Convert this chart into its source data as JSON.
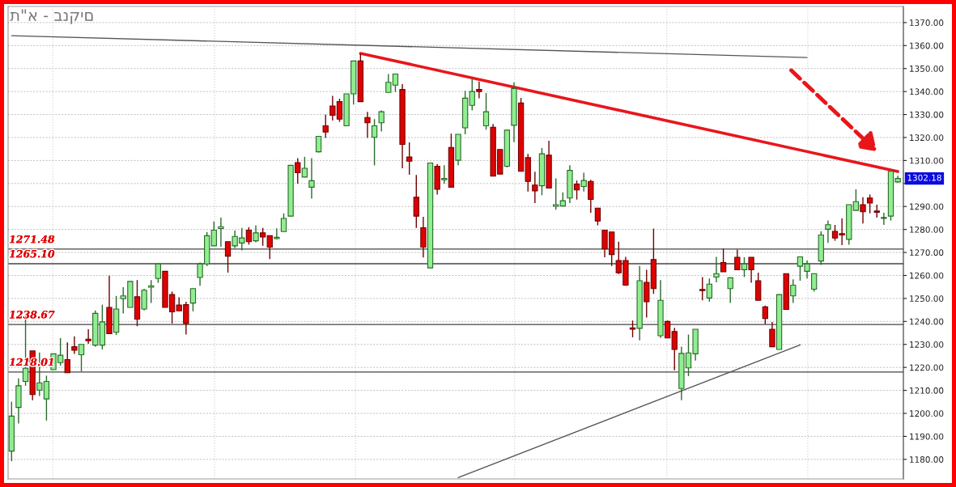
{
  "chart_data": {
    "type": "candlestick",
    "title": "ת\"א - בנקים",
    "categories": [
      null,
      null,
      null,
      null,
      null,
      null,
      null,
      null,
      null,
      null,
      null,
      null,
      null,
      null,
      null,
      null,
      null,
      null,
      null,
      null,
      null,
      null,
      null,
      null,
      null,
      null,
      null,
      null,
      null,
      null,
      null,
      null,
      null,
      null,
      null,
      null,
      null,
      null,
      null,
      null,
      null,
      null,
      null,
      null,
      null,
      null,
      null,
      null,
      null,
      null,
      null,
      null,
      null,
      null,
      null,
      null,
      null,
      null,
      null,
      null,
      null,
      null,
      null,
      null,
      null,
      null,
      null,
      null,
      null,
      null,
      null,
      null,
      null,
      null,
      null,
      null,
      null,
      null,
      null,
      null,
      null,
      null,
      null,
      null,
      null,
      null,
      null,
      null,
      null,
      null,
      null,
      null,
      null,
      null,
      null,
      null,
      null,
      null,
      null,
      null,
      null,
      null,
      null,
      null,
      null,
      null,
      null,
      null,
      null,
      null,
      null,
      null,
      null,
      null,
      null,
      null,
      null,
      null,
      null,
      null,
      null,
      null,
      null,
      null,
      null,
      null,
      null,
      null
    ],
    "ohlc": [
      [
        1183.6,
        1205.1,
        1179.2,
        1198.8
      ],
      [
        1202.6,
        1215.2,
        1195.6,
        1212.0
      ],
      [
        1213.9,
        1242.9,
        1212.0,
        1219.6
      ],
      [
        1227.2,
        1227.2,
        1205.7,
        1208.2
      ],
      [
        1210.1,
        1226.5,
        1207.6,
        1213.3
      ],
      [
        1206.3,
        1216.4,
        1196.9,
        1213.9
      ],
      [
        1219.0,
        1225.9,
        1219.0,
        1225.9
      ],
      [
        1222.1,
        1232.8,
        1220.8,
        1225.3
      ],
      [
        1223.4,
        1230.9,
        1217.7,
        1217.7
      ],
      [
        1229.0,
        1233.5,
        1225.9,
        1227.5
      ],
      [
        1225.5,
        1230.0,
        1218.3,
        1230.0
      ],
      [
        1232.3,
        1236.6,
        1230.3,
        1231.6
      ],
      [
        1229.7,
        1244.8,
        1229.0,
        1243.5
      ],
      [
        1229.7,
        1247.3,
        1227.8,
        1239.8
      ],
      [
        1246.1,
        1259.9,
        1234.7,
        1234.7
      ],
      [
        1235.3,
        1251.1,
        1234.1,
        1245.4
      ],
      [
        1249.9,
        1254.9,
        1243.5,
        1251.1
      ],
      [
        1246.1,
        1257.4,
        1246.1,
        1257.4
      ],
      [
        1250.7,
        1258.0,
        1237.9,
        1241.0
      ],
      [
        1245.4,
        1254.2,
        1244.8,
        1253.6
      ],
      [
        1254.9,
        1258.0,
        1248.0,
        1255.5
      ],
      [
        1258.7,
        1265.0,
        1256.8,
        1265.0
      ],
      [
        1261.8,
        1261.8,
        1246.1,
        1246.1
      ],
      [
        1251.7,
        1253.0,
        1239.1,
        1244.2
      ],
      [
        1247.1,
        1250.5,
        1244.6,
        1244.6
      ],
      [
        1247.3,
        1248.6,
        1234.3,
        1239.1
      ],
      [
        1248.0,
        1254.3,
        1244.4,
        1254.3
      ],
      [
        1259.1,
        1265.6,
        1255.5,
        1265.0
      ],
      [
        1265.0,
        1278.9,
        1264.1,
        1277.3
      ],
      [
        1272.9,
        1283.5,
        1272.9,
        1279.7
      ],
      [
        1280.4,
        1285.2,
        1272.5,
        1281.2
      ],
      [
        1274.7,
        1274.7,
        1261.2,
        1268.4
      ],
      [
        1272.9,
        1279.5,
        1271.9,
        1277.0
      ],
      [
        1274.1,
        1280.7,
        1270.9,
        1276.3
      ],
      [
        1279.7,
        1281.0,
        1273.4,
        1274.7
      ],
      [
        1275.1,
        1281.8,
        1274.4,
        1278.5
      ],
      [
        1278.5,
        1280.7,
        1272.9,
        1276.7
      ],
      [
        1277.3,
        1277.3,
        1267.1,
        1272.3
      ],
      [
        1276.0,
        1280.5,
        1275.7,
        1276.6
      ],
      [
        1279.1,
        1287.0,
        1279.1,
        1284.8
      ],
      [
        1285.8,
        1307.9,
        1285.8,
        1307.9
      ],
      [
        1309.1,
        1311.0,
        1299.9,
        1304.7
      ],
      [
        1302.8,
        1311.6,
        1302.8,
        1306.6
      ],
      [
        1298.4,
        1311.0,
        1293.4,
        1301.2
      ],
      [
        1313.8,
        1320.5,
        1313.5,
        1320.5
      ],
      [
        1325.1,
        1329.9,
        1319.8,
        1322.4
      ],
      [
        1333.7,
        1338.1,
        1327.4,
        1329.7
      ],
      [
        1335.6,
        1336.9,
        1326.8,
        1328.0
      ],
      [
        1325.1,
        1339.0,
        1325.1,
        1339.0
      ],
      [
        1339.0,
        1353.3,
        1334.3,
        1353.3
      ],
      [
        1353.3,
        1356.4,
        1335.6,
        1335.6
      ],
      [
        1328.7,
        1331.2,
        1319.8,
        1326.4
      ],
      [
        1320.1,
        1328.0,
        1307.9,
        1325.1
      ],
      [
        1326.4,
        1331.8,
        1322.6,
        1331.2
      ],
      [
        1339.6,
        1347.6,
        1339.6,
        1344.0
      ],
      [
        1342.8,
        1347.8,
        1339.8,
        1347.6
      ],
      [
        1340.9,
        1343.2,
        1306.6,
        1317.0
      ],
      [
        1311.5,
        1317.9,
        1303.8,
        1309.7
      ],
      [
        1294.0,
        1303.7,
        1280.7,
        1285.8
      ],
      [
        1280.7,
        1285.5,
        1267.8,
        1272.3
      ],
      [
        1263.3,
        1308.9,
        1263.3,
        1308.9
      ],
      [
        1307.5,
        1308.5,
        1295.2,
        1297.5
      ],
      [
        1301.6,
        1307.9,
        1299.9,
        1302.2
      ],
      [
        1315.7,
        1321.7,
        1298.4,
        1298.4
      ],
      [
        1310.1,
        1321.4,
        1307.9,
        1321.4
      ],
      [
        1324.2,
        1340.3,
        1321.4,
        1337.1
      ],
      [
        1334.0,
        1345.7,
        1331.8,
        1340.0
      ],
      [
        1340.9,
        1344.4,
        1337.1,
        1340.0
      ],
      [
        1325.1,
        1339.4,
        1323.4,
        1331.2
      ],
      [
        1324.5,
        1325.9,
        1303.2,
        1303.2
      ],
      [
        1314.8,
        1314.8,
        1304.1,
        1304.1
      ],
      [
        1307.5,
        1323.2,
        1307.0,
        1323.2
      ],
      [
        1325.3,
        1344.0,
        1318.0,
        1341.3
      ],
      [
        1335.0,
        1337.2,
        1305.3,
        1305.3
      ],
      [
        1311.3,
        1312.9,
        1296.5,
        1300.9
      ],
      [
        1299.3,
        1305.1,
        1291.5,
        1296.8
      ],
      [
        1299.0,
        1315.4,
        1294.9,
        1312.9
      ],
      [
        1312.3,
        1318.6,
        1298.0,
        1298.0
      ],
      [
        1290.1,
        1302.2,
        1288.6,
        1290.8
      ],
      [
        1290.2,
        1296.1,
        1290.2,
        1292.5
      ],
      [
        1293.7,
        1307.9,
        1291.5,
        1305.7
      ],
      [
        1299.7,
        1301.3,
        1293.0,
        1297.2
      ],
      [
        1298.7,
        1304.7,
        1296.5,
        1301.3
      ],
      [
        1300.9,
        1301.6,
        1287.3,
        1293.1
      ],
      [
        1289.3,
        1289.3,
        1281.8,
        1283.7
      ],
      [
        1279.7,
        1279.7,
        1267.9,
        1271.5
      ],
      [
        1278.9,
        1278.9,
        1264.1,
        1269.1
      ],
      [
        1266.5,
        1274.7,
        1260.6,
        1261.2
      ],
      [
        1266.5,
        1268.1,
        1255.5,
        1255.8
      ],
      [
        1237.2,
        1240.4,
        1233.1,
        1236.6
      ],
      [
        1237.0,
        1264.1,
        1231.8,
        1257.7
      ],
      [
        1257.0,
        1262.5,
        1241.7,
        1248.6
      ],
      [
        1266.9,
        1280.4,
        1252.0,
        1254.3
      ],
      [
        1233.8,
        1258.0,
        1232.8,
        1249.2
      ],
      [
        1240.0,
        1240.4,
        1232.8,
        1232.8
      ],
      [
        1235.6,
        1237.2,
        1218.7,
        1227.8
      ],
      [
        1210.8,
        1229.0,
        1205.7,
        1226.1
      ],
      [
        1219.8,
        1234.3,
        1216.2,
        1226.3
      ],
      [
        1225.9,
        1236.6,
        1223.0,
        1236.6
      ],
      [
        1253.9,
        1259.3,
        1249.2,
        1253.4
      ],
      [
        1250.2,
        1258.7,
        1248.6,
        1256.2
      ],
      [
        1259.3,
        1268.1,
        1257.0,
        1260.8
      ],
      [
        1265.6,
        1271.7,
        1261.6,
        1261.6
      ],
      [
        1254.3,
        1259.0,
        1248.0,
        1259.0
      ],
      [
        1267.9,
        1271.3,
        1262.5,
        1262.5
      ],
      [
        1262.5,
        1267.9,
        1259.3,
        1265.0
      ],
      [
        1267.9,
        1267.9,
        1256.8,
        1262.5
      ],
      [
        1257.7,
        1261.2,
        1249.2,
        1249.2
      ],
      [
        1246.3,
        1246.9,
        1238.8,
        1241.3
      ],
      [
        1236.6,
        1239.8,
        1229.0,
        1229.0
      ],
      [
        1227.8,
        1251.7,
        1227.8,
        1251.7
      ],
      [
        1260.8,
        1260.8,
        1245.2,
        1245.2
      ],
      [
        1251.1,
        1258.3,
        1248.0,
        1255.8
      ],
      [
        1264.0,
        1268.1,
        1257.7,
        1268.1
      ],
      [
        1261.8,
        1266.5,
        1258.7,
        1265.0
      ],
      [
        1254.0,
        1260.8,
        1253.0,
        1260.8
      ],
      [
        1266.3,
        1279.2,
        1264.6,
        1277.6
      ],
      [
        1280.1,
        1283.9,
        1274.2,
        1282.1
      ],
      [
        1279.2,
        1282.0,
        1275.1,
        1276.3
      ],
      [
        1278.2,
        1284.8,
        1273.2,
        1277.6
      ],
      [
        1275.7,
        1290.8,
        1273.4,
        1290.8
      ],
      [
        1288.3,
        1297.5,
        1288.3,
        1292.1
      ],
      [
        1290.8,
        1294.0,
        1282.6,
        1287.7
      ],
      [
        1293.7,
        1295.2,
        1287.0,
        1291.5
      ],
      [
        1288.0,
        1290.8,
        1285.2,
        1287.5
      ],
      [
        1284.8,
        1287.3,
        1282.0,
        1285.2
      ],
      [
        1285.8,
        1305.3,
        1283.9,
        1305.3
      ],
      [
        1300.7,
        1303.4,
        1300.3,
        1302.2
      ]
    ],
    "series": [
      {
        "type": "line",
        "color": "#555555",
        "values": [
          1364.3,
          null,
          null,
          null,
          null,
          null,
          null,
          null,
          null,
          null,
          null,
          null,
          null,
          null,
          null,
          null,
          null,
          null,
          null,
          null,
          null,
          null,
          null,
          null,
          null,
          null,
          null,
          null,
          null,
          null,
          null,
          null,
          null,
          null,
          null,
          null,
          null,
          null,
          null,
          null,
          null,
          null,
          null,
          null,
          null,
          null,
          null,
          null,
          null,
          null,
          null,
          null,
          null,
          null,
          null,
          null,
          null,
          null,
          null,
          null,
          null,
          null,
          null,
          null,
          null,
          null,
          null,
          null,
          null,
          null,
          null,
          null,
          null,
          null,
          null,
          null,
          null,
          null,
          null,
          null,
          null,
          null,
          null,
          null,
          null,
          null,
          null,
          null,
          null,
          null,
          null,
          null,
          null,
          null,
          null,
          null,
          null,
          null,
          null,
          null,
          null,
          null,
          null,
          null,
          null,
          null,
          null,
          null,
          null,
          null,
          null,
          null,
          null,
          null,
          1354.8,
          null,
          null,
          null,
          null,
          null,
          null,
          null,
          null,
          null,
          null,
          null,
          null,
          null
        ]
      },
      {
        "type": "line",
        "color": "#e8161b",
        "values": [
          null,
          null,
          null,
          null,
          null,
          null,
          null,
          null,
          null,
          null,
          null,
          null,
          null,
          null,
          null,
          null,
          null,
          null,
          null,
          null,
          null,
          null,
          null,
          null,
          null,
          null,
          null,
          null,
          null,
          null,
          null,
          null,
          null,
          null,
          null,
          null,
          null,
          null,
          null,
          null,
          null,
          null,
          null,
          null,
          null,
          null,
          null,
          null,
          null,
          null,
          1356.6,
          null,
          null,
          null,
          null,
          null,
          null,
          null,
          null,
          null,
          null,
          null,
          null,
          null,
          null,
          null,
          null,
          null,
          null,
          null,
          null,
          null,
          null,
          null,
          null,
          null,
          null,
          null,
          null,
          null,
          null,
          null,
          null,
          null,
          null,
          null,
          null,
          null,
          null,
          null,
          null,
          null,
          null,
          null,
          null,
          null,
          null,
          null,
          null,
          null,
          null,
          null,
          null,
          null,
          null,
          null,
          null,
          null,
          null,
          null,
          null,
          null,
          null,
          null,
          null,
          null,
          null,
          null,
          null,
          null,
          null,
          null,
          null,
          null,
          null,
          null,
          null,
          1305.2
        ]
      },
      {
        "type": "line",
        "color": "#555555",
        "values": [
          null,
          null,
          null,
          null,
          null,
          null,
          null,
          null,
          null,
          null,
          null,
          null,
          null,
          null,
          null,
          null,
          null,
          null,
          null,
          null,
          null,
          null,
          null,
          null,
          null,
          null,
          null,
          null,
          null,
          null,
          null,
          null,
          null,
          null,
          null,
          null,
          null,
          null,
          null,
          null,
          null,
          null,
          null,
          null,
          null,
          null,
          null,
          null,
          null,
          null,
          null,
          null,
          null,
          null,
          null,
          null,
          null,
          null,
          null,
          null,
          null,
          null,
          null,
          null,
          1172.1,
          null,
          null,
          null,
          null,
          null,
          null,
          null,
          null,
          null,
          null,
          null,
          null,
          null,
          null,
          null,
          null,
          null,
          null,
          null,
          null,
          null,
          null,
          null,
          null,
          null,
          null,
          null,
          null,
          null,
          null,
          null,
          null,
          null,
          null,
          null,
          null,
          null,
          null,
          null,
          null,
          null,
          null,
          null,
          null,
          null,
          null,
          null,
          null,
          1229.8,
          null,
          null,
          null,
          null,
          null,
          null,
          null,
          null,
          null,
          null,
          null,
          null,
          null,
          null
        ]
      }
    ],
    "ref_lines": [
      {
        "axis": "y",
        "value": 1271.48,
        "label": "1271.48",
        "color": "#444444"
      },
      {
        "axis": "y",
        "value": 1265.1,
        "label": "1265.10",
        "color": "#444444"
      },
      {
        "axis": "y",
        "value": 1238.67,
        "label": "1238.67",
        "color": "#444444"
      },
      {
        "axis": "y",
        "value": 1218.01,
        "label": "1218.01",
        "color": "#444444"
      }
    ],
    "annotations": [
      "1302.18"
    ],
    "ylim": [
      1171.5,
      1377
    ],
    "yticks": [
      {
        "value": 1180,
        "label": "1180.00"
      },
      {
        "value": 1190,
        "label": "1190.00"
      },
      {
        "value": 1200,
        "label": "1200.00"
      },
      {
        "value": 1210,
        "label": "1210.00"
      },
      {
        "value": 1220,
        "label": "1220.00"
      },
      {
        "value": 1230,
        "label": "1230.00"
      },
      {
        "value": 1240,
        "label": "1240.00"
      },
      {
        "value": 1250,
        "label": "1250.00"
      },
      {
        "value": 1260,
        "label": "1260.00"
      },
      {
        "value": 1270,
        "label": "1270.00"
      },
      {
        "value": 1280,
        "label": "1280.00"
      },
      {
        "value": 1290,
        "label": "1290.00"
      },
      {
        "value": 1300,
        "label": null
      },
      {
        "value": 1310,
        "label": "1310.00"
      },
      {
        "value": 1320,
        "label": "1320.00"
      },
      {
        "value": 1330,
        "label": "1330.00"
      },
      {
        "value": 1340,
        "label": "1340.00"
      },
      {
        "value": 1350,
        "label": "1350.00"
      },
      {
        "value": 1360,
        "label": "1360.00"
      },
      {
        "value": 1370,
        "label": "1370.00"
      }
    ],
    "grid": "y",
    "tick_labels": "y"
  }
}
